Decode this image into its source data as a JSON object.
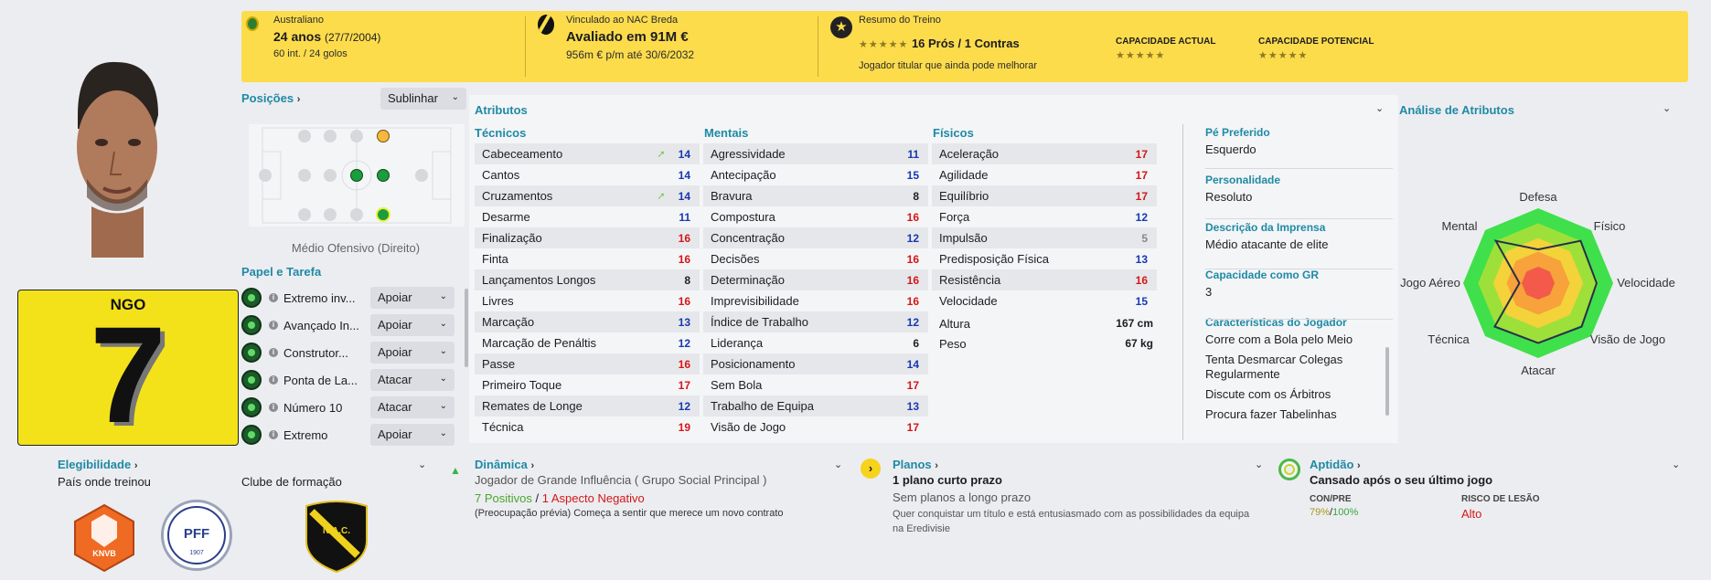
{
  "header": {
    "nationality": "Australiano",
    "age": "24 anos",
    "dob": "(27/7/2004)",
    "caps": "60 int. / 24 golos",
    "club_status": "Vinculado ao NAC Breda",
    "value": "Avaliado em 91M €",
    "wage": "956m € p/m até 30/6/2032",
    "training_title": "Resumo do Treino",
    "training_pros": "16 Prós / 1 Contras",
    "training_desc": "Jogador titular que ainda pode melhorar",
    "current_ability_label": "CAPACIDADE ACTUAL",
    "potential_ability_label": "CAPACIDADE POTENCIAL",
    "pros_stars": "★★★★★",
    "current_stars": "★★★★★",
    "potential_stars": "★★★★★"
  },
  "player": {
    "shirt_name": "NGO",
    "shirt_number": "7"
  },
  "positions": {
    "title": "Posições",
    "highlight": "Sublinhar",
    "position_label": "Médio Ofensivo (Direito)"
  },
  "roles": {
    "title": "Papel e Tarefa",
    "items": [
      {
        "name": "Extremo inv...",
        "duty": "Apoiar"
      },
      {
        "name": "Avançado In...",
        "duty": "Apoiar"
      },
      {
        "name": "Construtor...",
        "duty": "Apoiar"
      },
      {
        "name": "Ponta de La...",
        "duty": "Atacar"
      },
      {
        "name": "Número 10",
        "duty": "Atacar"
      },
      {
        "name": "Extremo",
        "duty": "Apoiar"
      }
    ]
  },
  "attributes": {
    "title": "Atributos",
    "technical_title": "Técnicos",
    "mental_title": "Mentais",
    "physical_title": "Físicos",
    "technical": [
      {
        "name": "Cabeceamento",
        "value": "14",
        "color": "blue",
        "trend": true
      },
      {
        "name": "Cantos",
        "value": "14",
        "color": "blue"
      },
      {
        "name": "Cruzamentos",
        "value": "14",
        "color": "blue",
        "trend": true
      },
      {
        "name": "Desarme",
        "value": "11",
        "color": "blue"
      },
      {
        "name": "Finalização",
        "value": "16",
        "color": "red"
      },
      {
        "name": "Finta",
        "value": "16",
        "color": "red"
      },
      {
        "name": "Lançamentos Longos",
        "value": "8",
        "color": "dark"
      },
      {
        "name": "Livres",
        "value": "16",
        "color": "red"
      },
      {
        "name": "Marcação",
        "value": "13",
        "color": "blue"
      },
      {
        "name": "Marcação de Penáltis",
        "value": "12",
        "color": "blue"
      },
      {
        "name": "Passe",
        "value": "16",
        "color": "red"
      },
      {
        "name": "Primeiro Toque",
        "value": "17",
        "color": "red"
      },
      {
        "name": "Remates de Longe",
        "value": "12",
        "color": "blue"
      },
      {
        "name": "Técnica",
        "value": "19",
        "color": "red"
      }
    ],
    "mental": [
      {
        "name": "Agressividade",
        "value": "11",
        "color": "blue"
      },
      {
        "name": "Antecipação",
        "value": "15",
        "color": "blue"
      },
      {
        "name": "Bravura",
        "value": "8",
        "color": "dark"
      },
      {
        "name": "Compostura",
        "value": "16",
        "color": "red"
      },
      {
        "name": "Concentração",
        "value": "12",
        "color": "blue"
      },
      {
        "name": "Decisões",
        "value": "16",
        "color": "red"
      },
      {
        "name": "Determinação",
        "value": "16",
        "color": "red"
      },
      {
        "name": "Imprevisibilidade",
        "value": "16",
        "color": "red"
      },
      {
        "name": "Índice de Trabalho",
        "value": "12",
        "color": "blue"
      },
      {
        "name": "Liderança",
        "value": "6",
        "color": "dark"
      },
      {
        "name": "Posicionamento",
        "value": "14",
        "color": "blue"
      },
      {
        "name": "Sem Bola",
        "value": "17",
        "color": "red"
      },
      {
        "name": "Trabalho de Equipa",
        "value": "13",
        "color": "blue"
      },
      {
        "name": "Visão de Jogo",
        "value": "17",
        "color": "red"
      }
    ],
    "physical": [
      {
        "name": "Aceleração",
        "value": "17",
        "color": "red"
      },
      {
        "name": "Agilidade",
        "value": "17",
        "color": "red"
      },
      {
        "name": "Equilíbrio",
        "value": "17",
        "color": "red"
      },
      {
        "name": "Força",
        "value": "12",
        "color": "blue"
      },
      {
        "name": "Impulsão",
        "value": "5",
        "color": "gray"
      },
      {
        "name": "Predisposição Física",
        "value": "13",
        "color": "blue"
      },
      {
        "name": "Resistência",
        "value": "16",
        "color": "red"
      },
      {
        "name": "Velocidade",
        "value": "15",
        "color": "blue"
      }
    ],
    "height_label": "Altura",
    "height": "167 cm",
    "weight_label": "Peso",
    "weight": "67 kg"
  },
  "side": {
    "foot_label": "Pé Preferido",
    "foot": "Esquerdo",
    "personality_label": "Personalidade",
    "personality": "Resoluto",
    "press_label": "Descrição da Imprensa",
    "press": "Médio atacante de elite",
    "gk_label": "Capacidade como GR",
    "gk": "3",
    "traits_label": "Características do Jogador",
    "traits": [
      "Corre com a Bola pelo Meio",
      "Tenta Desmarcar Colegas Regularmente",
      "Discute com os Árbitros",
      "Procura fazer Tabelinhas"
    ]
  },
  "analysis": {
    "title": "Análise de Atributos",
    "labels": [
      "Defesa",
      "Físico",
      "Velocidade",
      "Visão de Jogo",
      "Atacar",
      "Técnica",
      "Jogo Aéreo",
      "Mental"
    ],
    "values": [
      0.45,
      0.8,
      0.78,
      0.82,
      0.8,
      0.82,
      0.25,
      0.8
    ]
  },
  "eligibility": {
    "title": "Elegibilidade",
    "country_trained": "País onde treinou",
    "formation_club": "Clube de formação",
    "knvb": "KNVB",
    "pff": "PFF",
    "pff_year": "1907",
    "nac": "N.A.C."
  },
  "dynamics": {
    "title": "Dinâmica",
    "influence": "Jogador de Grande Influência",
    "group": "( Grupo Social Principal )",
    "positives": "7 Positivos",
    "separator": "/",
    "negatives": "1 Aspecto Negativo",
    "concern_label": "(Preocupação prévia)",
    "concern": "Começa a sentir que merece um novo contrato"
  },
  "plans": {
    "title": "Planos",
    "short": "1 plano curto prazo",
    "long": "Sem planos a longo prazo",
    "desc": "Quer conquistar um título e está entusiasmado com as possibilidades da equipa na Eredivisie"
  },
  "fitness": {
    "title": "Aptidão",
    "status": "Cansado após o seu último jogo",
    "con_label": "CON/PRE",
    "con_value": "79%",
    "con_sep": "/",
    "pre_value": "100%",
    "injury_label": "RISCO DE LESÃO",
    "injury_value": "Alto"
  }
}
